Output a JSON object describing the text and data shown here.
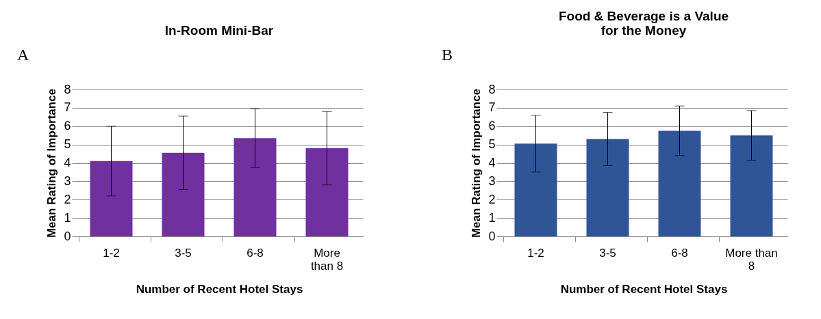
{
  "chart_data": [
    {
      "type": "bar",
      "title": "In-Room Mini-Bar",
      "xlabel": "Number of Recent Hotel Stays",
      "ylabel": "Mean Rating of Importance",
      "annotations": [
        "A"
      ],
      "categories": [
        "1-2",
        "3-5",
        "6-8",
        "More than 8"
      ],
      "series": [
        {
          "color": "#7030a0",
          "values": [
            4.1,
            4.55,
            5.35,
            4.8
          ],
          "errors": [
            1.9,
            2.0,
            1.6,
            2.0
          ]
        }
      ],
      "ylim": [
        0,
        8
      ],
      "yticks": [
        0,
        1,
        2,
        3,
        4,
        5,
        6,
        7,
        8
      ],
      "grid": "y"
    },
    {
      "type": "bar",
      "title": "Food & Beverage is a Value for the Money",
      "xlabel": "Number of Recent Hotel Stays",
      "ylabel": "Mean Rating of Importance",
      "annotations": [
        "B"
      ],
      "categories": [
        "1-2",
        "3-5",
        "6-8",
        "More than 8"
      ],
      "series": [
        {
          "color": "#2f5597",
          "values": [
            5.05,
            5.3,
            5.75,
            5.5
          ],
          "errors": [
            1.55,
            1.45,
            1.35,
            1.35
          ]
        }
      ],
      "ylim": [
        0,
        8
      ],
      "yticks": [
        0,
        1,
        2,
        3,
        4,
        5,
        6,
        7,
        8
      ],
      "grid": "y"
    }
  ]
}
